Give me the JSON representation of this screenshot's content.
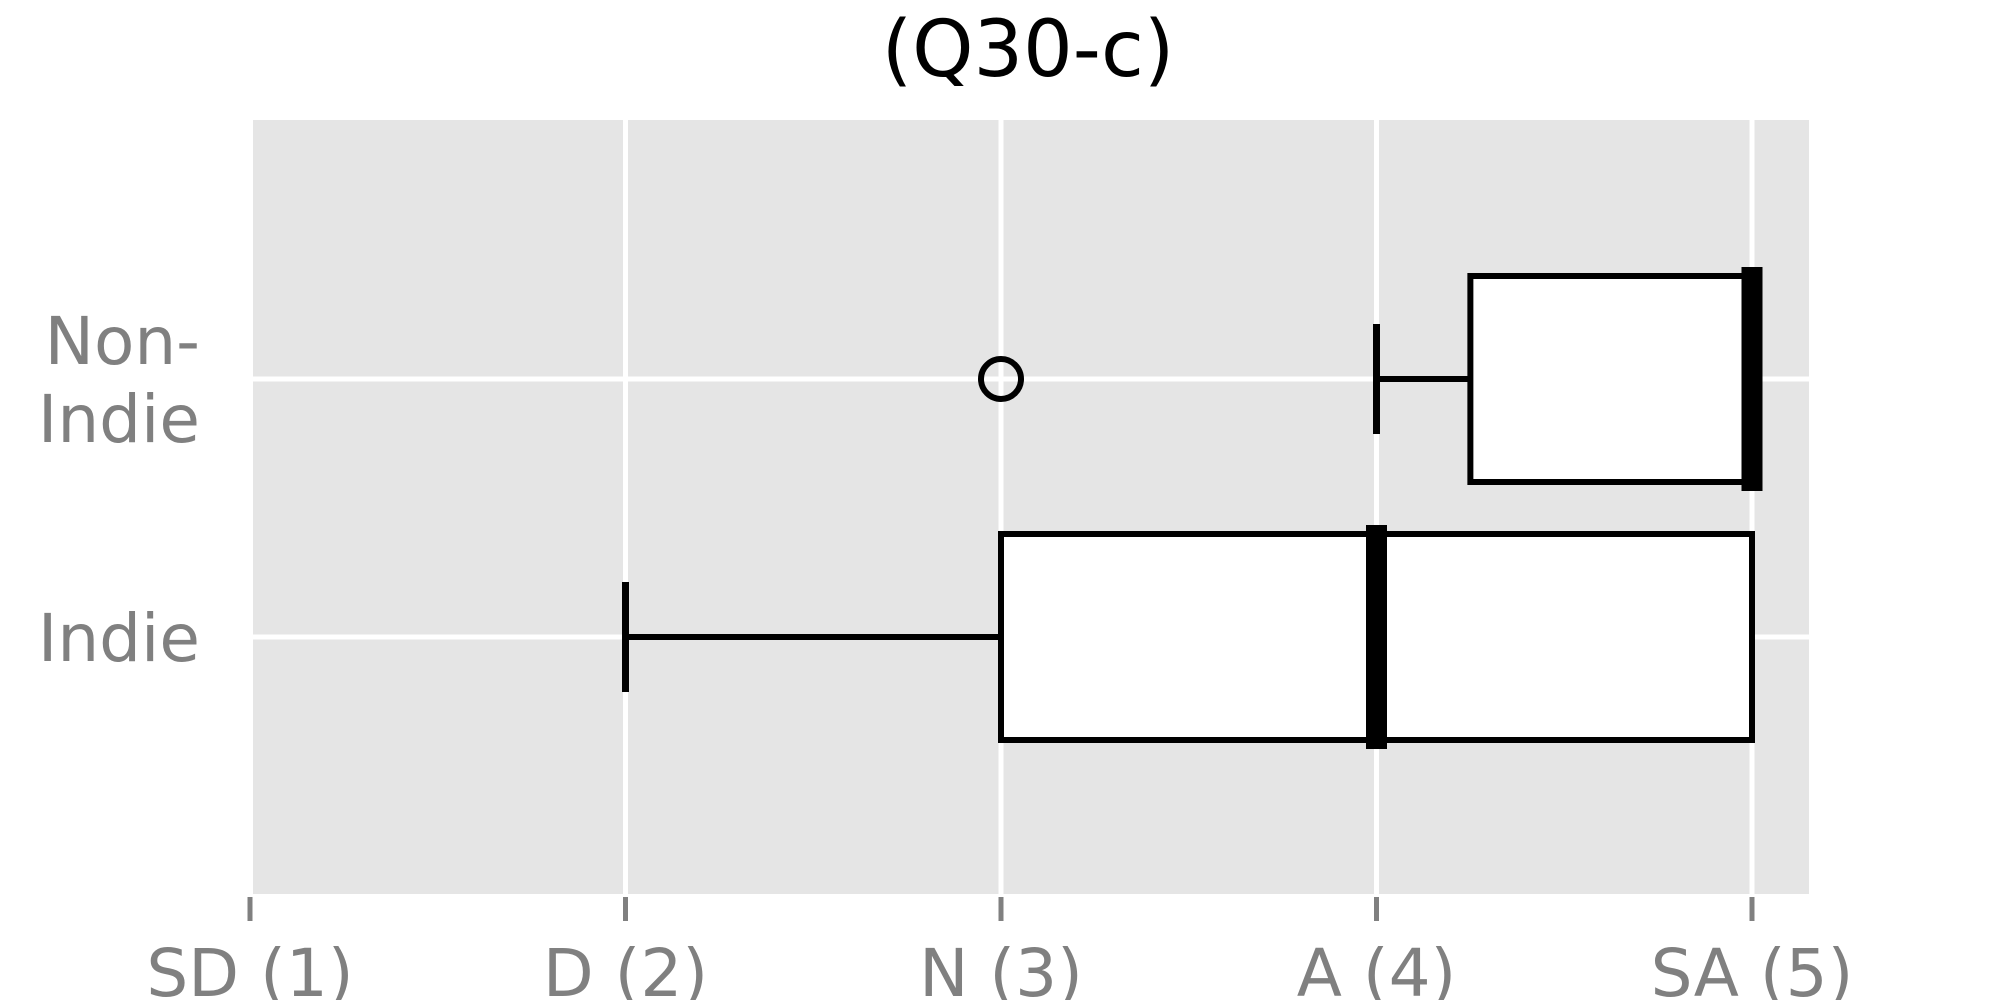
{
  "chart_data": {
    "type": "boxplot",
    "orientation": "horizontal",
    "title": "(Q30-c)",
    "xlabel": "",
    "ylabel": "",
    "x_ticks": [
      {
        "value": 1,
        "label": "SD (1)"
      },
      {
        "value": 2,
        "label": "D (2)"
      },
      {
        "value": 3,
        "label": "N (3)"
      },
      {
        "value": 4,
        "label": "A (4)"
      },
      {
        "value": 5,
        "label": "SA (5)"
      }
    ],
    "xlim": [
      0.99,
      5.15
    ],
    "grid": true,
    "background": "#e5e5e5",
    "grid_color": "#ffffff",
    "box_fill": "#ffffff",
    "line_color": "#000000",
    "label_color": "#808080",
    "categories": [
      {
        "label_lines": [
          "Non-",
          "Indie"
        ],
        "whisker_low": 4.0,
        "q1": 4.25,
        "median": 5.0,
        "q3": 5.0,
        "whisker_high": 5.0,
        "outliers": [
          3.0
        ]
      },
      {
        "label_lines": [
          "Indie"
        ],
        "whisker_low": 2.0,
        "q1": 3.0,
        "median": 4.0,
        "q3": 5.0,
        "whisker_high": 5.0,
        "outliers": []
      }
    ]
  }
}
